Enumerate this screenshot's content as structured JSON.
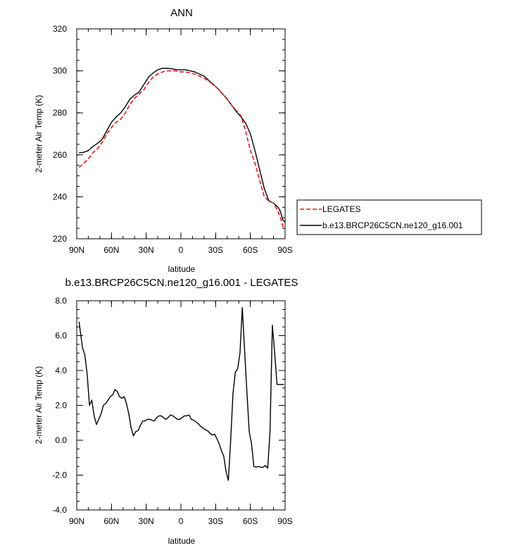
{
  "chart_data": [
    {
      "type": "line",
      "title": "ANN",
      "xlabel": "latitude",
      "ylabel": "2-meter Air Temp (K)",
      "xlim": [
        90,
        -90
      ],
      "ylim": [
        220,
        320
      ],
      "xticks": [
        90,
        60,
        30,
        0,
        -30,
        -60,
        -90
      ],
      "xtick_labels": [
        "90N",
        "60N",
        "30N",
        "0",
        "30S",
        "60S",
        "90S"
      ],
      "yticks": [
        220,
        240,
        260,
        280,
        300,
        320
      ],
      "ytick_labels": [
        "220",
        "240",
        "260",
        "280",
        "300",
        "320"
      ],
      "legend_position": "outside-right",
      "series": [
        {
          "name": "LEGATES",
          "color": "#e31a1c",
          "dash": "dashed",
          "x": [
            88,
            84,
            80,
            76,
            72,
            68,
            64,
            60,
            56,
            52,
            48,
            44,
            40,
            36,
            32,
            28,
            24,
            20,
            16,
            12,
            8,
            4,
            0,
            -4,
            -8,
            -12,
            -16,
            -20,
            -24,
            -28,
            -32,
            -36,
            -40,
            -44,
            -48,
            -52,
            -56,
            -60,
            -64,
            -68,
            -72,
            -76,
            -80,
            -84,
            -86,
            -88,
            -90
          ],
          "y": [
            254,
            256,
            258,
            261,
            263,
            266,
            270,
            273,
            275.5,
            277,
            280,
            284,
            287,
            289,
            291,
            294.5,
            297,
            298.5,
            299.5,
            300,
            300,
            300,
            299.5,
            299.5,
            299,
            298.5,
            297.5,
            296.5,
            295,
            293.5,
            291.5,
            289,
            286.5,
            283.5,
            281,
            278.5,
            271,
            262,
            256,
            248,
            240,
            238,
            237,
            233,
            230,
            226,
            225
          ]
        },
        {
          "name": "b.e13.BRCP26C5CN.ne120_g16.001",
          "color": "#000000",
          "dash": "solid",
          "x": [
            88,
            84,
            80,
            76,
            72,
            68,
            64,
            60,
            56,
            52,
            48,
            44,
            40,
            36,
            32,
            28,
            24,
            20,
            16,
            12,
            8,
            4,
            0,
            -4,
            -8,
            -12,
            -16,
            -20,
            -24,
            -28,
            -32,
            -36,
            -40,
            -44,
            -48,
            -52,
            -56,
            -60,
            -64,
            -68,
            -72,
            -76,
            -80,
            -84,
            -86,
            -88,
            -90
          ],
          "y": [
            261,
            261.2,
            262,
            264,
            265.5,
            267.5,
            271.5,
            275.5,
            278,
            280,
            283,
            286.5,
            288.5,
            290,
            293.5,
            297,
            299,
            300.5,
            301.2,
            301.2,
            301,
            300.6,
            300.5,
            300.5,
            300,
            299.5,
            298.5,
            297.5,
            295.5,
            293.5,
            291.5,
            289,
            286.5,
            283.5,
            280.5,
            278,
            275,
            270,
            262,
            253,
            244,
            238,
            237,
            235,
            233,
            229,
            228
          ]
        }
      ]
    },
    {
      "type": "line",
      "title": "b.e13.BRCP26C5CN.ne120_g16.001 - LEGATES",
      "xlabel": "latitude",
      "ylabel": "2-meter Air Temp (K)",
      "xlim": [
        90,
        -90
      ],
      "ylim": [
        -4,
        8
      ],
      "xticks": [
        90,
        60,
        30,
        0,
        -30,
        -60,
        -90
      ],
      "xtick_labels": [
        "90N",
        "60N",
        "30N",
        "0",
        "30S",
        "60S",
        "90S"
      ],
      "yticks": [
        -4,
        -2,
        0,
        2,
        4,
        6,
        8
      ],
      "ytick_labels": [
        "-4.0",
        "-2.0",
        "0.0",
        "2.0",
        "4.0",
        "6.0",
        "8.0"
      ],
      "series": [
        {
          "color": "#000000",
          "dash": "solid",
          "x": [
            88,
            85,
            83,
            81,
            79,
            77,
            75,
            73,
            71,
            69,
            67,
            65,
            63,
            61,
            59,
            57,
            55,
            53,
            51,
            49,
            47,
            45,
            43,
            41,
            39,
            37,
            35,
            33,
            31,
            29,
            27,
            25,
            23,
            21,
            19,
            17,
            15,
            13,
            11,
            9,
            7,
            5,
            3,
            1,
            -1,
            -3,
            -5,
            -7,
            -9,
            -11,
            -13,
            -15,
            -17,
            -19,
            -21,
            -23,
            -25,
            -27,
            -29,
            -31,
            -33,
            -35,
            -37,
            -39,
            -41,
            -43,
            -45,
            -47,
            -49,
            -51,
            -53,
            -55,
            -57,
            -59,
            -61,
            -63,
            -65,
            -67,
            -69,
            -71,
            -73,
            -75,
            -77,
            -79,
            -81,
            -83,
            -85,
            -87,
            -89
          ],
          "y": [
            6.8,
            5.3,
            4.9,
            3.8,
            2.0,
            2.3,
            1.4,
            0.9,
            1.2,
            1.5,
            2.0,
            2.1,
            2.3,
            2.5,
            2.6,
            2.9,
            2.8,
            2.5,
            2.4,
            2.5,
            2.1,
            1.5,
            0.7,
            0.25,
            0.5,
            0.55,
            0.85,
            1.1,
            1.1,
            1.2,
            1.2,
            1.15,
            1.1,
            1.3,
            1.4,
            1.4,
            1.3,
            1.2,
            1.3,
            1.45,
            1.4,
            1.3,
            1.2,
            1.2,
            1.3,
            1.4,
            1.4,
            1.45,
            1.2,
            1.15,
            1.05,
            0.95,
            0.8,
            0.7,
            0.6,
            0.55,
            0.4,
            0.3,
            0.35,
            0.1,
            -0.2,
            -0.6,
            -0.9,
            -1.8,
            -2.3,
            0.0,
            2.7,
            3.9,
            4.1,
            5.0,
            7.6,
            5.2,
            2.8,
            0.5,
            -0.2,
            -1.5,
            -1.55,
            -1.5,
            -1.55,
            -1.55,
            -1.45,
            -1.6,
            0.5,
            6.6,
            5.0,
            3.2,
            3.2,
            3.2,
            3.2
          ]
        }
      ]
    }
  ]
}
